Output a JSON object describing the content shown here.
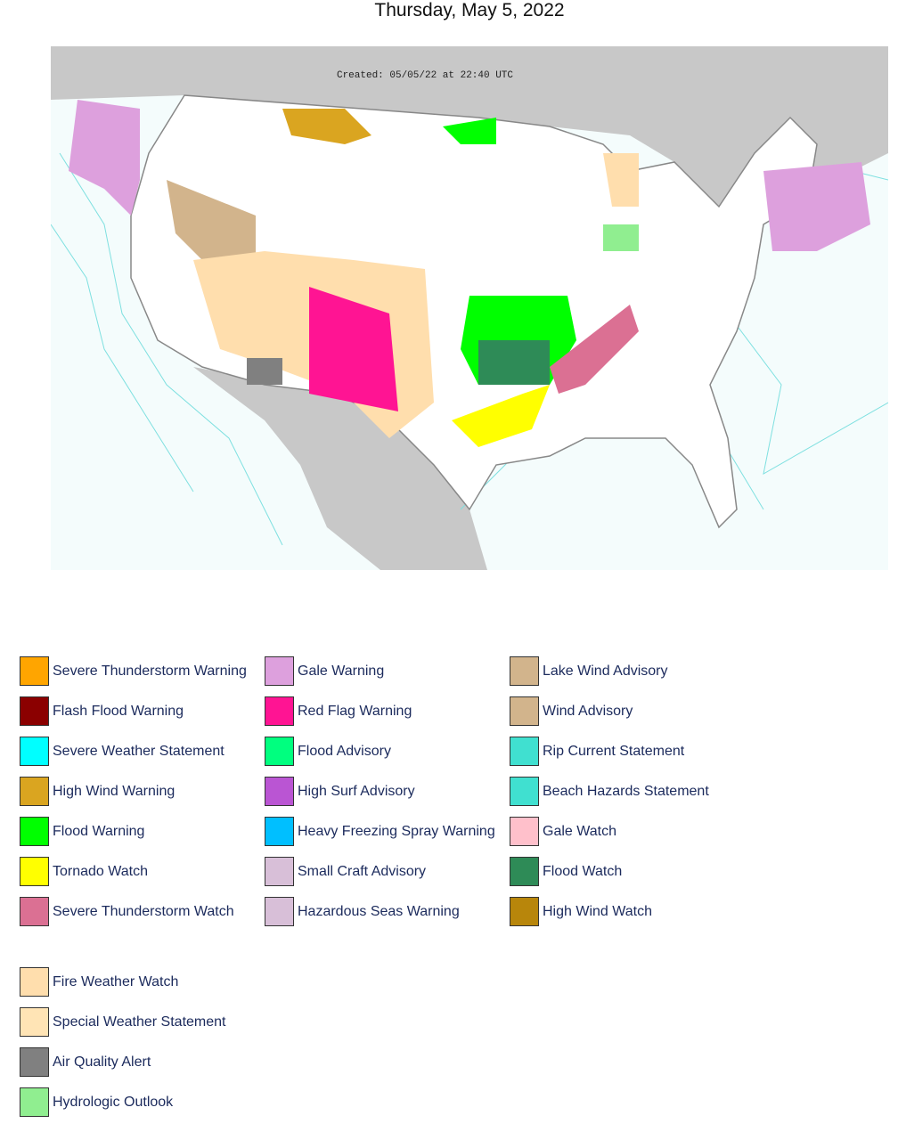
{
  "header": {
    "title": "Thursday, May 5, 2022"
  },
  "map": {
    "created": "Created: 05/05/22 at 22:40 UTC"
  },
  "legend": {
    "columns": [
      [
        {
          "label": "Severe Thunderstorm Warning",
          "color": "#FFA500"
        },
        {
          "label": "Flash Flood Warning",
          "color": "#8B0000"
        },
        {
          "label": "Severe Weather Statement",
          "color": "#00FFFF"
        },
        {
          "label": "High Wind Warning",
          "color": "#DAA520"
        },
        {
          "label": "Flood Warning",
          "color": "#00FF00"
        },
        {
          "label": "Tornado Watch",
          "color": "#FFFF00"
        },
        {
          "label": "Severe Thunderstorm Watch",
          "color": "#DB7093"
        }
      ],
      [
        {
          "label": "Gale Warning",
          "color": "#DDA0DD"
        },
        {
          "label": "Red Flag Warning",
          "color": "#FF1493"
        },
        {
          "label": "Flood Advisory",
          "color": "#00FF7F"
        },
        {
          "label": "High Surf Advisory",
          "color": "#BA55D3"
        },
        {
          "label": "Heavy Freezing Spray Warning",
          "color": "#00BFFF"
        },
        {
          "label": "Small Craft Advisory",
          "color": "#D8BFD8"
        },
        {
          "label": "Hazardous Seas Warning",
          "color": "#D8BFD8"
        }
      ],
      [
        {
          "label": "Lake Wind Advisory",
          "color": "#D2B48C"
        },
        {
          "label": "Wind Advisory",
          "color": "#D2B48C"
        },
        {
          "label": "Rip Current Statement",
          "color": "#40E0D0"
        },
        {
          "label": "Beach Hazards Statement",
          "color": "#40E0D0"
        },
        {
          "label": "Gale Watch",
          "color": "#FFC0CB"
        },
        {
          "label": "Flood Watch",
          "color": "#2E8B57"
        },
        {
          "label": "High Wind Watch",
          "color": "#B8860B"
        }
      ]
    ],
    "extra": [
      {
        "label": "Fire Weather Watch",
        "color": "#FFDEAD"
      },
      {
        "label": "Special Weather Statement",
        "color": "#FFE4B5"
      },
      {
        "label": "Air Quality Alert",
        "color": "#808080"
      },
      {
        "label": "Hydrologic Outlook",
        "color": "#90EE90"
      }
    ]
  }
}
